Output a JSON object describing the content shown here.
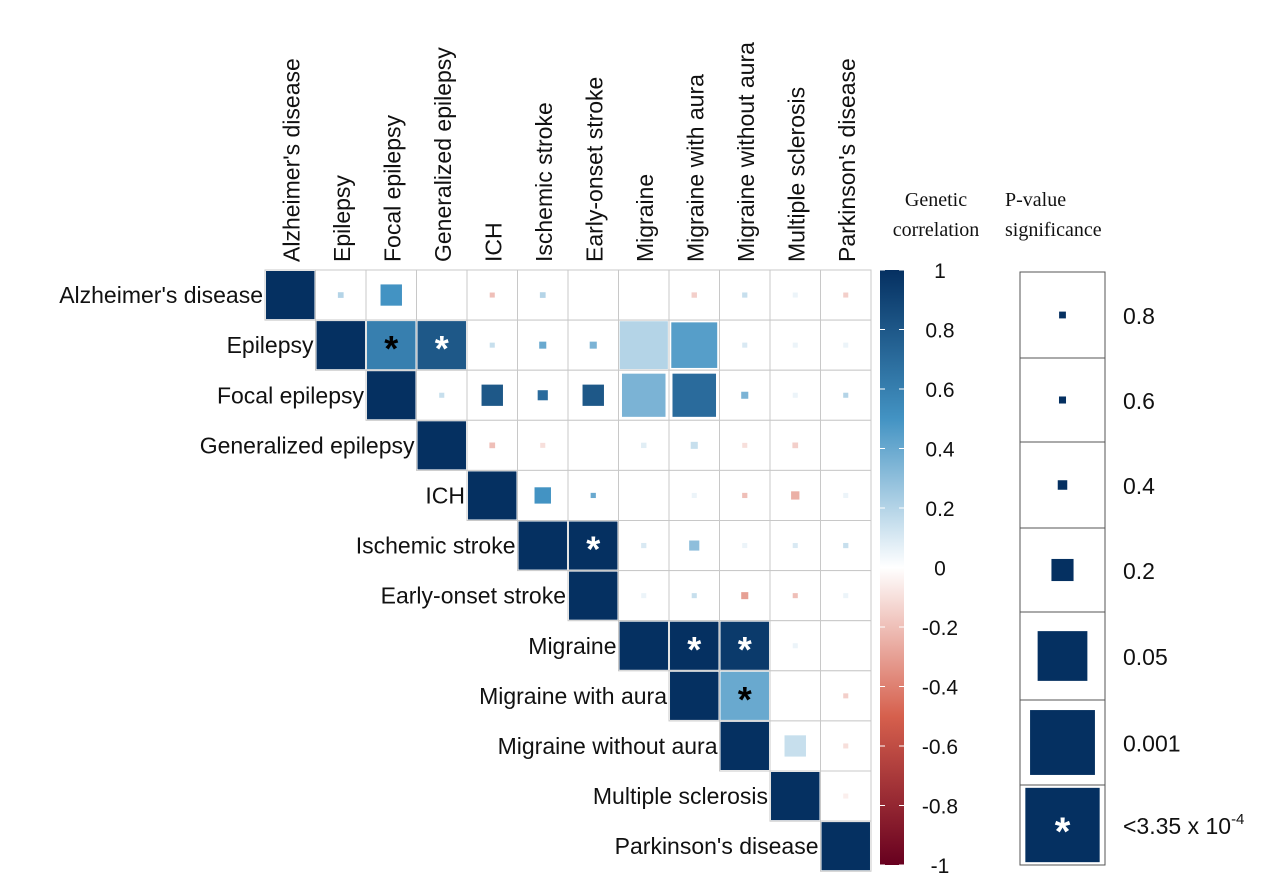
{
  "chart_data": {
    "type": "heatmap",
    "subtype": "upper-triangular correlation matrix",
    "traits": [
      "Alzheimer's disease",
      "Epilepsy",
      "Focal epilepsy",
      "Generalized epilepsy",
      "ICH",
      "Ischemic stroke",
      "Early-onset stroke",
      "Migraine",
      "Migraine with aura",
      "Migraine without aura",
      "Multiple sclerosis",
      "Parkinson's disease"
    ],
    "cells": [
      {
        "row": 0,
        "col": 0,
        "rg": 1.0,
        "p": 0,
        "star": false
      },
      {
        "row": 0,
        "col": 1,
        "rg": 0.2,
        "p": 0.5,
        "star": false
      },
      {
        "row": 0,
        "col": 2,
        "rg": 0.5,
        "p": 0.15,
        "star": false
      },
      {
        "row": 0,
        "col": 4,
        "rg": -0.2,
        "p": 0.75,
        "star": false
      },
      {
        "row": 0,
        "col": 5,
        "rg": 0.2,
        "p": 0.5,
        "star": false
      },
      {
        "row": 0,
        "col": 8,
        "rg": -0.15,
        "p": 0.55,
        "star": false
      },
      {
        "row": 0,
        "col": 9,
        "rg": 0.15,
        "p": 0.6,
        "star": false
      },
      {
        "row": 0,
        "col": 10,
        "rg": 0.05,
        "p": 0.9,
        "star": false
      },
      {
        "row": 0,
        "col": 11,
        "rg": -0.15,
        "p": 0.75,
        "star": false
      },
      {
        "row": 1,
        "col": 1,
        "rg": 1.0,
        "p": 0,
        "star": false
      },
      {
        "row": 1,
        "col": 2,
        "rg": 0.6,
        "p": 0.0001,
        "star": true,
        "star_color": "#000000"
      },
      {
        "row": 1,
        "col": 3,
        "rg": 0.8,
        "p": 0.0001,
        "star": true,
        "star_color": "#ffffff"
      },
      {
        "row": 1,
        "col": 4,
        "rg": 0.15,
        "p": 0.75,
        "star": false
      },
      {
        "row": 1,
        "col": 5,
        "rg": 0.4,
        "p": 0.4,
        "star": false
      },
      {
        "row": 1,
        "col": 6,
        "rg": 0.35,
        "p": 0.4,
        "star": false
      },
      {
        "row": 1,
        "col": 7,
        "rg": 0.2,
        "p": 0.001,
        "star": false
      },
      {
        "row": 1,
        "col": 8,
        "rg": 0.45,
        "p": 0.01,
        "star": false
      },
      {
        "row": 1,
        "col": 9,
        "rg": 0.1,
        "p": 0.7,
        "star": false
      },
      {
        "row": 1,
        "col": 10,
        "rg": 0.05,
        "p": 0.9,
        "star": false
      },
      {
        "row": 1,
        "col": 11,
        "rg": 0.05,
        "p": 0.95,
        "star": false
      },
      {
        "row": 2,
        "col": 2,
        "rg": 1.0,
        "p": 0,
        "star": false
      },
      {
        "row": 2,
        "col": 3,
        "rg": 0.15,
        "p": 0.7,
        "star": false
      },
      {
        "row": 2,
        "col": 4,
        "rg": 0.8,
        "p": 0.15,
        "star": false
      },
      {
        "row": 2,
        "col": 5,
        "rg": 0.7,
        "p": 0.3,
        "star": false
      },
      {
        "row": 2,
        "col": 6,
        "rg": 0.8,
        "p": 0.15,
        "star": false
      },
      {
        "row": 2,
        "col": 7,
        "rg": 0.35,
        "p": 0.02,
        "star": false
      },
      {
        "row": 2,
        "col": 8,
        "rg": 0.7,
        "p": 0.02,
        "star": false
      },
      {
        "row": 2,
        "col": 9,
        "rg": 0.35,
        "p": 0.4,
        "star": false
      },
      {
        "row": 2,
        "col": 10,
        "rg": 0.05,
        "p": 0.95,
        "star": false
      },
      {
        "row": 2,
        "col": 11,
        "rg": 0.2,
        "p": 0.7,
        "star": false
      },
      {
        "row": 3,
        "col": 3,
        "rg": 1.0,
        "p": 0,
        "star": false
      },
      {
        "row": 3,
        "col": 4,
        "rg": -0.2,
        "p": 0.5,
        "star": false
      },
      {
        "row": 3,
        "col": 5,
        "rg": -0.1,
        "p": 0.8,
        "star": false
      },
      {
        "row": 3,
        "col": 7,
        "rg": 0.08,
        "p": 0.55,
        "star": false
      },
      {
        "row": 3,
        "col": 8,
        "rg": 0.15,
        "p": 0.4,
        "star": false
      },
      {
        "row": 3,
        "col": 9,
        "rg": -0.1,
        "p": 0.8,
        "star": false
      },
      {
        "row": 3,
        "col": 10,
        "rg": -0.15,
        "p": 0.5,
        "star": false
      },
      {
        "row": 4,
        "col": 4,
        "rg": 1.0,
        "p": 0,
        "star": false
      },
      {
        "row": 4,
        "col": 5,
        "rg": 0.5,
        "p": 0.2,
        "star": false
      },
      {
        "row": 4,
        "col": 6,
        "rg": 0.4,
        "p": 0.6,
        "star": false
      },
      {
        "row": 4,
        "col": 8,
        "rg": 0.05,
        "p": 0.95,
        "star": false
      },
      {
        "row": 4,
        "col": 9,
        "rg": -0.2,
        "p": 0.6,
        "star": false
      },
      {
        "row": 4,
        "col": 10,
        "rg": -0.25,
        "p": 0.35,
        "star": false
      },
      {
        "row": 4,
        "col": 11,
        "rg": 0.05,
        "p": 0.9,
        "star": false
      },
      {
        "row": 5,
        "col": 5,
        "rg": 1.0,
        "p": 0,
        "star": false
      },
      {
        "row": 5,
        "col": 6,
        "rg": 1.0,
        "p": 0.0001,
        "star": true,
        "star_color": "#ffffff"
      },
      {
        "row": 5,
        "col": 7,
        "rg": 0.1,
        "p": 0.6,
        "star": false
      },
      {
        "row": 5,
        "col": 8,
        "rg": 0.3,
        "p": 0.3,
        "star": false
      },
      {
        "row": 5,
        "col": 9,
        "rg": 0.05,
        "p": 0.9,
        "star": false
      },
      {
        "row": 5,
        "col": 10,
        "rg": 0.1,
        "p": 0.75,
        "star": false
      },
      {
        "row": 5,
        "col": 11,
        "rg": 0.15,
        "p": 0.6,
        "star": false
      },
      {
        "row": 6,
        "col": 6,
        "rg": 1.0,
        "p": 0,
        "star": false
      },
      {
        "row": 6,
        "col": 7,
        "rg": 0.05,
        "p": 0.9,
        "star": false
      },
      {
        "row": 6,
        "col": 8,
        "rg": 0.15,
        "p": 0.7,
        "star": false
      },
      {
        "row": 6,
        "col": 9,
        "rg": -0.3,
        "p": 0.4,
        "star": false
      },
      {
        "row": 6,
        "col": 10,
        "rg": -0.2,
        "p": 0.7,
        "star": false
      },
      {
        "row": 6,
        "col": 11,
        "rg": 0.05,
        "p": 0.95,
        "star": false
      },
      {
        "row": 7,
        "col": 7,
        "rg": 1.0,
        "p": 0,
        "star": false
      },
      {
        "row": 7,
        "col": 8,
        "rg": 1.0,
        "p": 0.0001,
        "star": true,
        "star_color": "#ffffff"
      },
      {
        "row": 7,
        "col": 9,
        "rg": 0.95,
        "p": 0.0001,
        "star": true,
        "star_color": "#ffffff"
      },
      {
        "row": 7,
        "col": 10,
        "rg": 0.05,
        "p": 0.95,
        "star": false
      },
      {
        "row": 8,
        "col": 8,
        "rg": 1.0,
        "p": 0,
        "star": false
      },
      {
        "row": 8,
        "col": 9,
        "rg": 0.4,
        "p": 0.0001,
        "star": true,
        "star_color": "#000000"
      },
      {
        "row": 8,
        "col": 11,
        "rg": -0.15,
        "p": 0.75,
        "star": false
      },
      {
        "row": 9,
        "col": 9,
        "rg": 1.0,
        "p": 0,
        "star": false
      },
      {
        "row": 9,
        "col": 10,
        "rg": 0.15,
        "p": 0.15,
        "star": false
      },
      {
        "row": 9,
        "col": 11,
        "rg": -0.1,
        "p": 0.75,
        "star": false
      },
      {
        "row": 10,
        "col": 10,
        "rg": 1.0,
        "p": 0,
        "star": false
      },
      {
        "row": 10,
        "col": 11,
        "rg": -0.05,
        "p": 0.9,
        "star": false
      },
      {
        "row": 11,
        "col": 11,
        "rg": 1.0,
        "p": 0,
        "star": false
      }
    ],
    "colorbar": {
      "title": "Genetic correlation",
      "range": [
        -1,
        1
      ],
      "ticks": [
        "1",
        "0.8",
        "0.6",
        "0.4",
        "0.2",
        "0",
        "-0.2",
        "-0.4",
        "-0.6",
        "-0.8",
        "-1"
      ],
      "colors": {
        "neg": "#67001f",
        "neg_mid": "#d6604d",
        "zero": "#ffffff",
        "pos_mid": "#4393c3",
        "pos": "#053061"
      }
    },
    "size_legend": {
      "title": "P-value significance",
      "entries": [
        {
          "label": "0.8",
          "p": 0.8
        },
        {
          "label": "0.6",
          "p": 0.6
        },
        {
          "label": "0.4",
          "p": 0.4
        },
        {
          "label": "0.2",
          "p": 0.2
        },
        {
          "label": "0.05",
          "p": 0.05
        },
        {
          "label": "0.001",
          "p": 0.001
        },
        {
          "label_base": "<3.35 x 10",
          "label_exp": "-4",
          "p": 0.0003,
          "star": true
        }
      ],
      "star_glyph": "*"
    }
  }
}
